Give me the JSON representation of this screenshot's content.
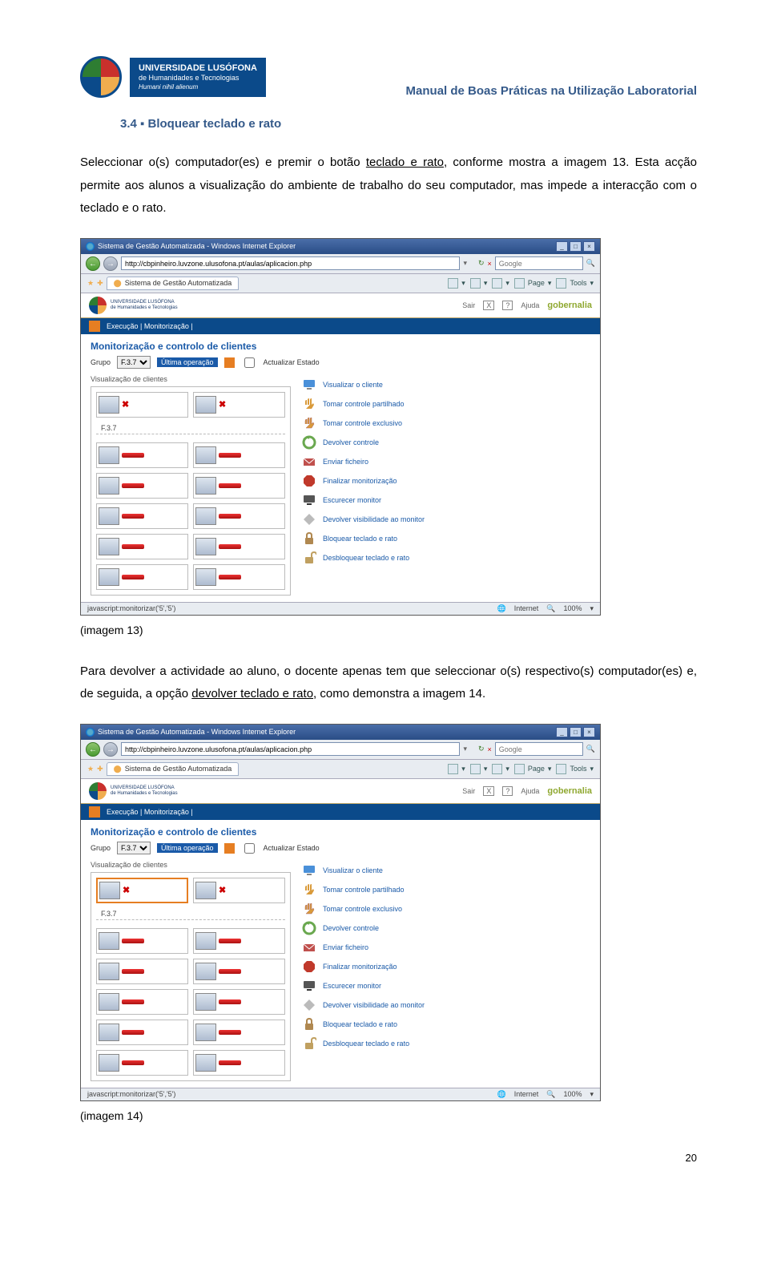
{
  "header": {
    "logo_line1": "UNIVERSIDADE LUSÓFONA",
    "logo_line2": "de Humanidades e Tecnologias",
    "logo_line3": "Humani nihil alienum",
    "right_title": "Manual de Boas Práticas na Utilização Laboratorial"
  },
  "section_title": "3.4 ▪ Bloquear teclado e rato",
  "para1_pre": "Seleccionar o(s) computador(es) e premir o botão ",
  "para1_u": "teclado e rato",
  "para1_post": ", conforme mostra a imagem 13. Esta acção permite aos alunos a visualização do ambiente de trabalho do seu computador, mas impede a interacção com o teclado e o rato.",
  "caption1": "(imagem 13)",
  "para2_pre": "Para devolver a actividade ao aluno, o docente apenas tem que seleccionar o(s) respectivo(s) computador(es) e, de seguida, a opção ",
  "para2_u": "devolver teclado e rato",
  "para2_post": ", como demonstra a imagem 14.",
  "caption2": "(imagem 14)",
  "pagenum": "20",
  "browser": {
    "window_title": "Sistema de Gestão Automatizada - Windows Internet Explorer",
    "url": "http://cbpinheiro.luvzone.ulusofona.pt/aulas/aplicacion.php",
    "search_placeholder": "Google",
    "tab_title": "Sistema de Gestão Automatizada",
    "tool_page": "Page",
    "tool_tools": "Tools",
    "status_left": "javascript:monitorizar('5','5')",
    "status_internet": "Internet",
    "status_zoom": "100%"
  },
  "app": {
    "ulogo_l1": "UNIVERSIDADE LUSÓFONA",
    "ulogo_l2": "de Humanidades e Tecnologias",
    "sair": "Sair",
    "ajuda": "Ajuda",
    "gobernalia": "gobernalia",
    "crumb": "Execução | Monitorização |",
    "h2": "Monitorização e controlo de clientes",
    "grupo_label": "Grupo",
    "grupo_value": "F.3.7",
    "ultima_op": "Última operação",
    "actualizar": "Actualizar Estado",
    "viz_label": "Visualização de clientes",
    "room": "F.3.7",
    "actions": [
      {
        "label": "Visualizar o cliente",
        "icon_color": "#4a90d9",
        "shape": "monitor"
      },
      {
        "label": "Tomar controle partilhado",
        "icon_color": "#d99a3a",
        "shape": "hand"
      },
      {
        "label": "Tomar controle exclusivo",
        "icon_color": "#d99a3a",
        "shape": "hand2"
      },
      {
        "label": "Devolver controle",
        "icon_color": "#6aa84f",
        "shape": "circle"
      },
      {
        "label": "Enviar ficheiro",
        "icon_color": "#c0504d",
        "shape": "envelope"
      },
      {
        "label": "Finalizar monitorização",
        "icon_color": "#c0392b",
        "shape": "octagon"
      },
      {
        "label": "Escurecer monitor",
        "icon_color": "#555555",
        "shape": "monitor-dark"
      },
      {
        "label": "Devolver visibilidade ao monitor",
        "icon_color": "#bbbbbb",
        "shape": "diamond"
      },
      {
        "label": "Bloquear teclado e rato",
        "icon_color": "#b08850",
        "shape": "lock"
      },
      {
        "label": "Desbloquear teclado e rato",
        "icon_color": "#c0a060",
        "shape": "unlock"
      }
    ]
  }
}
